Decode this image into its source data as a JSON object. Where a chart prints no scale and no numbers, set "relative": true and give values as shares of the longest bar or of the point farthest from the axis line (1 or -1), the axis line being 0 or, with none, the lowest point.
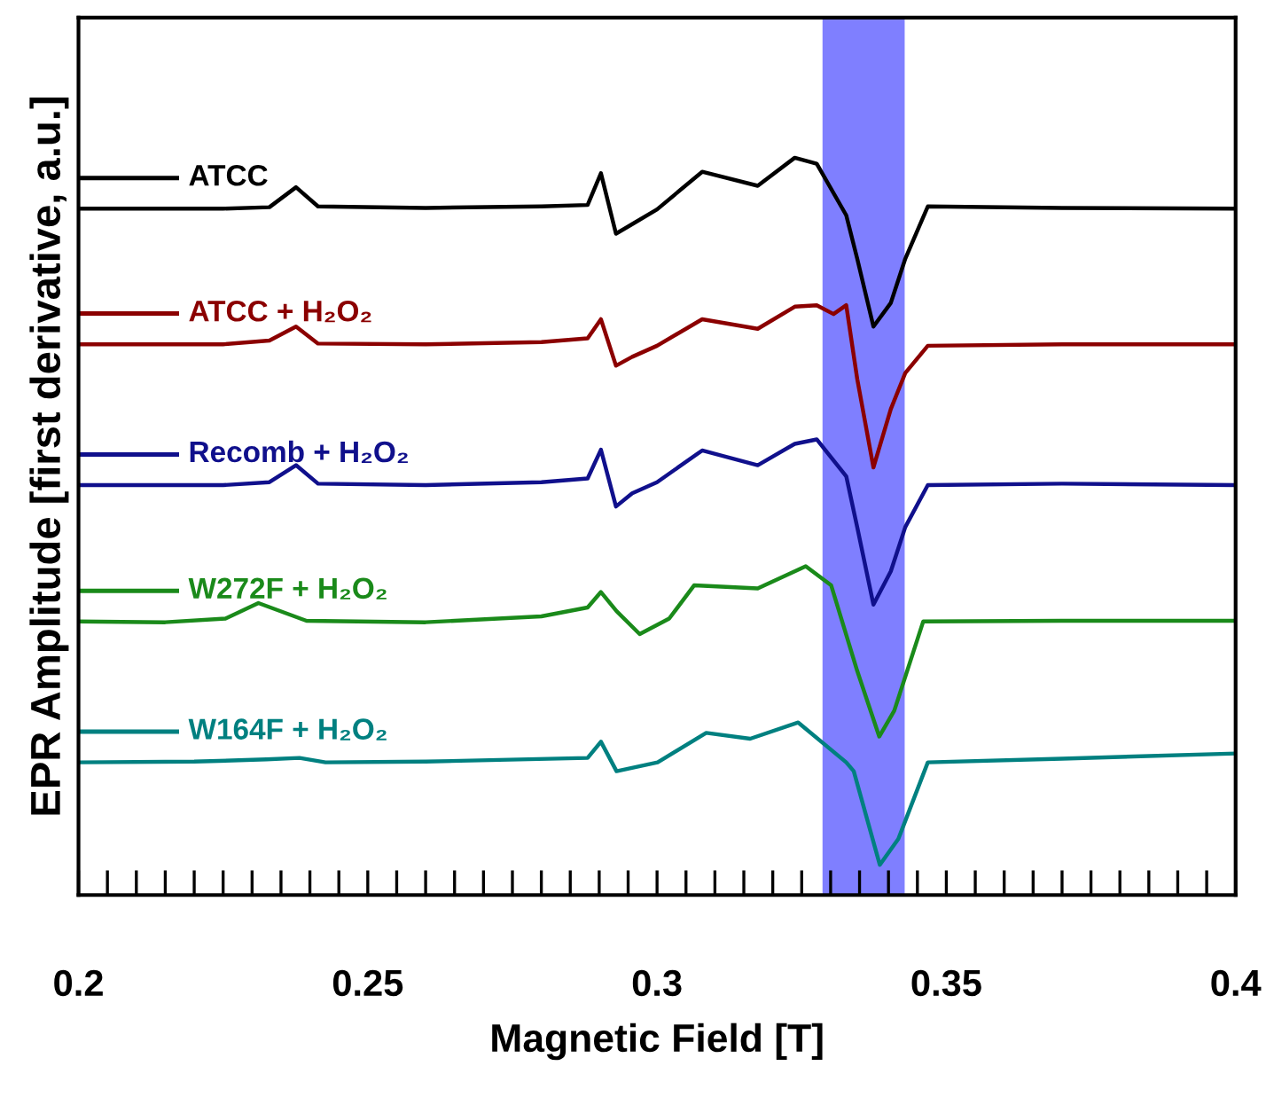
{
  "chart_data": {
    "type": "line",
    "relative": true,
    "xlabel": "Magnetic Field [T]",
    "ylabel": "EPR Amplitude [first derivative, a.u.]",
    "xlim": [
      0.2,
      0.4
    ],
    "xticks": [
      0.2,
      {
        "value": 0.205,
        "label": null
      },
      {
        "value": 0.21,
        "label": null
      },
      {
        "value": 0.215,
        "label": null
      },
      {
        "value": 0.22,
        "label": null
      },
      {
        "value": 0.225,
        "label": null
      },
      {
        "value": 0.23,
        "label": null
      },
      {
        "value": 0.235,
        "label": null
      },
      {
        "value": 0.24,
        "label": null
      },
      {
        "value": 0.245,
        "label": null
      },
      0.25,
      {
        "value": 0.255,
        "label": null
      },
      {
        "value": 0.26,
        "label": null
      },
      {
        "value": 0.265,
        "label": null
      },
      {
        "value": 0.27,
        "label": null
      },
      {
        "value": 0.275,
        "label": null
      },
      {
        "value": 0.28,
        "label": null
      },
      {
        "value": 0.285,
        "label": null
      },
      {
        "value": 0.29,
        "label": null
      },
      {
        "value": 0.295,
        "label": null
      },
      0.3,
      {
        "value": 0.305,
        "label": null
      },
      {
        "value": 0.31,
        "label": null
      },
      {
        "value": 0.315,
        "label": null
      },
      {
        "value": 0.32,
        "label": null
      },
      {
        "value": 0.325,
        "label": null
      },
      {
        "value": 0.33,
        "label": null
      },
      {
        "value": 0.335,
        "label": null
      },
      {
        "value": 0.34,
        "label": null
      },
      {
        "value": 0.345,
        "label": null
      },
      0.35,
      {
        "value": 0.355,
        "label": null
      },
      {
        "value": 0.36,
        "label": null
      },
      {
        "value": 0.365,
        "label": null
      },
      {
        "value": 0.37,
        "label": null
      },
      {
        "value": 0.375,
        "label": null
      },
      {
        "value": 0.38,
        "label": null
      },
      {
        "value": 0.385,
        "label": null
      },
      {
        "value": 0.39,
        "label": null
      },
      {
        "value": 0.395,
        "label": null
      },
      0.4
    ],
    "tick_labels": "x",
    "grid": false,
    "legend": "left",
    "line_style": "solid",
    "bands": [
      {
        "axis": "x",
        "from": 0.3286,
        "to": 0.3428,
        "color": "#0000ff"
      }
    ],
    "series": [
      {
        "name": "ATCC",
        "color": "#000000",
        "x": [
          0.2,
          0.225,
          0.233,
          0.2376,
          0.2414,
          0.26,
          0.28,
          0.288,
          0.2903,
          0.2929,
          0.2957,
          0.3,
          0.3078,
          0.3174,
          0.3238,
          0.3276,
          0.3327,
          0.3346,
          0.3374,
          0.3404,
          0.3429,
          0.3468,
          0.37,
          0.4
        ],
        "values": [
          0.931,
          0.931,
          0.933,
          0.96,
          0.934,
          0.932,
          0.934,
          0.936,
          0.979,
          0.897,
          0.91,
          0.93,
          0.981,
          0.962,
          1.0,
          0.992,
          0.922,
          0.863,
          0.771,
          0.803,
          0.863,
          0.934,
          0.932,
          0.931
        ]
      },
      {
        "name": "ATCC + H₂O₂",
        "color": "#8b0000",
        "x": [
          0.2,
          0.225,
          0.233,
          0.2376,
          0.2414,
          0.26,
          0.28,
          0.288,
          0.2903,
          0.2929,
          0.2957,
          0.3,
          0.3078,
          0.3174,
          0.3238,
          0.3276,
          0.3305,
          0.3327,
          0.3346,
          0.3374,
          0.3404,
          0.3429,
          0.3468,
          0.37,
          0.4
        ],
        "values": [
          0.747,
          0.747,
          0.752,
          0.771,
          0.748,
          0.747,
          0.75,
          0.755,
          0.781,
          0.718,
          0.73,
          0.745,
          0.781,
          0.768,
          0.798,
          0.8,
          0.788,
          0.8,
          0.7,
          0.58,
          0.659,
          0.708,
          0.745,
          0.747,
          0.747
        ]
      },
      {
        "name": "Recomb + H₂O₂",
        "color": "#10108c",
        "x": [
          0.2,
          0.225,
          0.233,
          0.2376,
          0.2414,
          0.26,
          0.28,
          0.288,
          0.2903,
          0.2929,
          0.2957,
          0.3,
          0.3078,
          0.3174,
          0.3238,
          0.3276,
          0.3327,
          0.3346,
          0.3374,
          0.3404,
          0.3429,
          0.3468,
          0.37,
          0.4
        ],
        "values": [
          0.556,
          0.556,
          0.56,
          0.583,
          0.558,
          0.556,
          0.56,
          0.565,
          0.604,
          0.527,
          0.545,
          0.56,
          0.603,
          0.583,
          0.612,
          0.618,
          0.568,
          0.499,
          0.394,
          0.439,
          0.499,
          0.556,
          0.558,
          0.556
        ]
      },
      {
        "name": "W272F + H₂O₂",
        "color": "#1a8a1a",
        "x": [
          0.2,
          0.215,
          0.2254,
          0.2311,
          0.2394,
          0.26,
          0.28,
          0.288,
          0.2903,
          0.293,
          0.297,
          0.3021,
          0.3064,
          0.3174,
          0.3257,
          0.3301,
          0.3346,
          0.3384,
          0.341,
          0.346,
          0.37,
          0.4
        ],
        "values": [
          0.371,
          0.37,
          0.375,
          0.396,
          0.372,
          0.37,
          0.378,
          0.39,
          0.411,
          0.385,
          0.354,
          0.375,
          0.42,
          0.416,
          0.446,
          0.42,
          0.304,
          0.215,
          0.25,
          0.371,
          0.372,
          0.372
        ]
      },
      {
        "name": "W164F + H₂O₂",
        "color": "#008080",
        "x": [
          0.2,
          0.22,
          0.2325,
          0.2382,
          0.2427,
          0.26,
          0.288,
          0.2903,
          0.293,
          0.3001,
          0.3085,
          0.3161,
          0.3244,
          0.3327,
          0.334,
          0.3385,
          0.3417,
          0.3468,
          0.37,
          0.4
        ],
        "values": [
          0.18,
          0.181,
          0.184,
          0.186,
          0.18,
          0.181,
          0.186,
          0.208,
          0.168,
          0.18,
          0.22,
          0.212,
          0.234,
          0.18,
          0.168,
          0.041,
          0.076,
          0.18,
          0.185,
          0.192
        ]
      }
    ]
  }
}
